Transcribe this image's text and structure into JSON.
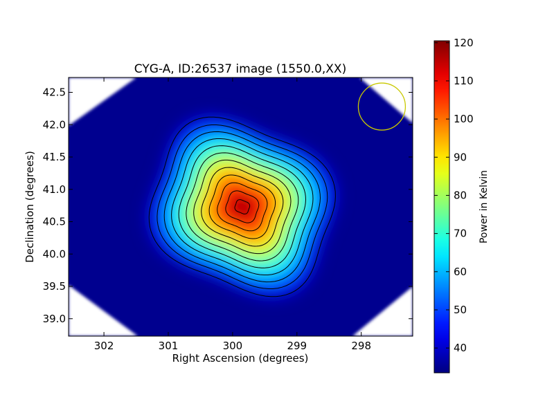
{
  "chart_data": {
    "type": "heatmap",
    "title": "CYG-A, ID:26537 image (1550.0,XX)",
    "xlabel": "Right Ascension (degrees)",
    "ylabel": "Declination (degrees)",
    "xlim": [
      302.55,
      297.2
    ],
    "ylim": [
      38.73,
      42.73
    ],
    "x_axis_inverted": true,
    "x_ticks": [
      302,
      301,
      300,
      299,
      298
    ],
    "x_tick_labels": [
      "302",
      "301",
      "300",
      "299",
      "298"
    ],
    "y_ticks": [
      39.0,
      39.5,
      40.0,
      40.5,
      41.0,
      41.5,
      42.0,
      42.5
    ],
    "y_tick_labels": [
      "39.0",
      "39.5",
      "40.0",
      "40.5",
      "41.0",
      "41.5",
      "42.0",
      "42.5"
    ],
    "colormap": "jet",
    "colorbar": {
      "label": "Power in Kelvin",
      "min": 33.5,
      "max": 120.5,
      "ticks": [
        40,
        50,
        60,
        70,
        80,
        90,
        100,
        110,
        120
      ],
      "tick_labels": [
        "40",
        "50",
        "60",
        "70",
        "80",
        "90",
        "100",
        "110",
        "120"
      ]
    },
    "source": {
      "peak_ra": 299.85,
      "peak_dec": 40.73,
      "peak_value": 120,
      "background_value": 36
    },
    "contours": {
      "color": "#000000",
      "levels": [
        39,
        47,
        54,
        61,
        68,
        75,
        82,
        89,
        96,
        103,
        110,
        117
      ]
    },
    "beam_circle": {
      "ra": 297.68,
      "dec": 42.28,
      "color": "#c9c900"
    },
    "edge_color": "#ffffff"
  }
}
